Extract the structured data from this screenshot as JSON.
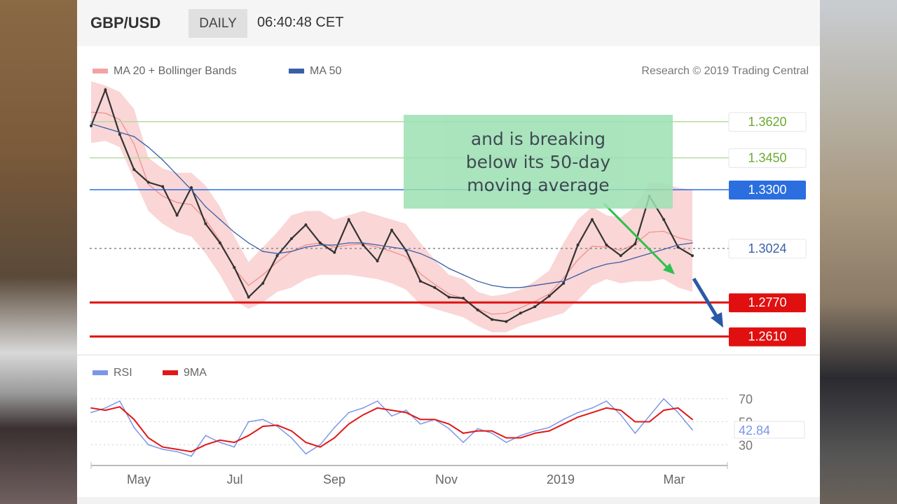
{
  "header": {
    "pair": "GBP/USD",
    "period": "DAILY",
    "time": "06:40:48 CET"
  },
  "legend": {
    "ma20": {
      "label": "MA 20 + Bollinger Bands",
      "color": "#f4a3a3"
    },
    "ma50": {
      "label": "MA 50",
      "color": "#3a5fa8"
    }
  },
  "credit": "Research © 2019 Trading Central",
  "callout": {
    "text": "and is breaking\nbelow its 50-day\nmoving average",
    "color": "#9be0b2"
  },
  "chart_data": [
    {
      "type": "line",
      "title": "",
      "x": [
        0,
        5,
        10,
        15,
        20,
        25,
        30,
        35,
        40,
        45,
        50,
        55,
        60,
        65,
        70,
        75,
        80,
        85,
        90,
        95,
        100,
        105,
        110,
        115,
        120,
        125,
        130,
        135,
        140,
        145,
        150,
        155,
        160,
        165,
        170,
        175,
        180,
        185,
        190,
        195,
        200,
        205,
        210
      ],
      "series": [
        {
          "name": "",
          "values": [
            1.36,
            1.377,
            1.356,
            1.3395,
            1.3335,
            1.3315,
            1.318,
            1.331,
            1.314,
            1.305,
            1.2935,
            1.2795,
            1.286,
            1.299,
            1.307,
            1.3135,
            1.305,
            1.3005,
            1.316,
            1.304,
            1.2965,
            1.311,
            1.3015,
            1.287,
            1.284,
            1.2795,
            1.279,
            1.2735,
            1.269,
            1.268,
            1.272,
            1.275,
            1.28,
            1.286,
            1.304,
            1.316,
            1.304,
            1.299,
            1.3045,
            1.327,
            1.316,
            1.303,
            1.299
          ],
          "color": "#333333"
        },
        {
          "name": "MA 50",
          "values": [
            1.361,
            1.359,
            1.357,
            1.355,
            1.35,
            1.344,
            1.337,
            1.33,
            1.322,
            1.316,
            1.31,
            1.305,
            1.301,
            1.3,
            1.301,
            1.303,
            1.304,
            1.304,
            1.305,
            1.305,
            1.304,
            1.303,
            1.302,
            1.3,
            1.297,
            1.293,
            1.29,
            1.287,
            1.285,
            1.284,
            1.284,
            1.285,
            1.286,
            1.287,
            1.29,
            1.293,
            1.295,
            1.296,
            1.298,
            1.3,
            1.302,
            1.304,
            1.305
          ],
          "color": "#3a5fa8"
        }
      ],
      "bands": {
        "upper": [
          1.381,
          1.379,
          1.376,
          1.368,
          1.345,
          1.34,
          1.338,
          1.338,
          1.332,
          1.322,
          1.308,
          1.296,
          1.303,
          1.31,
          1.318,
          1.32,
          1.32,
          1.316,
          1.318,
          1.32,
          1.318,
          1.316,
          1.314,
          1.305,
          1.297,
          1.29,
          1.288,
          1.282,
          1.28,
          1.281,
          1.283,
          1.287,
          1.292,
          1.305,
          1.316,
          1.322,
          1.318,
          1.317,
          1.322,
          1.333,
          1.333,
          1.331,
          1.33
        ],
        "lower": [
          1.352,
          1.353,
          1.35,
          1.335,
          1.32,
          1.314,
          1.31,
          1.308,
          1.3,
          1.29,
          1.278,
          1.274,
          1.277,
          1.282,
          1.284,
          1.288,
          1.29,
          1.29,
          1.29,
          1.289,
          1.288,
          1.286,
          1.283,
          1.276,
          1.274,
          1.272,
          1.27,
          1.266,
          1.263,
          1.263,
          1.266,
          1.268,
          1.27,
          1.272,
          1.278,
          1.285,
          1.288,
          1.286,
          1.287,
          1.287,
          1.288,
          1.284,
          1.282
        ],
        "color": "#f4a3a3"
      },
      "levels": [
        {
          "value": 1.362,
          "label": "1.3620",
          "color": "#b5dba0",
          "text_color": "#6aaa2e"
        },
        {
          "value": 1.345,
          "label": "1.3450",
          "color": "#b5dba0",
          "text_color": "#6aaa2e"
        },
        {
          "value": 1.33,
          "label": "1.3300",
          "color": "#2a6ee0",
          "text_color": "#ffffff"
        },
        {
          "value": 1.3024,
          "label": "1.3024",
          "color": "#888888",
          "text_color": "#3a5fa8"
        },
        {
          "value": 1.277,
          "label": "1.2770",
          "color": "#e01010",
          "text_color": "#ffffff"
        },
        {
          "value": 1.261,
          "label": "1.2610",
          "color": "#e01010",
          "text_color": "#ffffff"
        }
      ],
      "ylim": [
        1.253,
        1.383
      ],
      "xlim": [
        0,
        210
      ]
    },
    {
      "type": "line",
      "title": "",
      "legend": [
        {
          "label": "RSI",
          "color": "#7b96e8"
        },
        {
          "label": "9MA",
          "color": "#e01818"
        }
      ],
      "x": [
        0,
        5,
        10,
        15,
        20,
        25,
        30,
        35,
        40,
        45,
        50,
        55,
        60,
        65,
        70,
        75,
        80,
        85,
        90,
        95,
        100,
        105,
        110,
        115,
        120,
        125,
        130,
        135,
        140,
        145,
        150,
        155,
        160,
        165,
        170,
        175,
        180,
        185,
        190,
        195,
        200,
        205,
        210
      ],
      "series": [
        {
          "name": "RSI",
          "values": [
            58,
            62,
            68,
            45,
            30,
            26,
            24,
            20,
            38,
            32,
            28,
            50,
            52,
            46,
            36,
            22,
            30,
            45,
            58,
            62,
            68,
            55,
            60,
            48,
            52,
            44,
            32,
            44,
            40,
            32,
            38,
            42,
            45,
            52,
            58,
            62,
            68,
            56,
            40,
            55,
            70,
            58,
            43
          ],
          "color": "#7b96e8"
        },
        {
          "name": "9MA",
          "values": [
            62,
            60,
            63,
            52,
            36,
            28,
            26,
            24,
            30,
            34,
            32,
            38,
            46,
            47,
            42,
            32,
            28,
            36,
            48,
            56,
            62,
            60,
            58,
            52,
            52,
            48,
            40,
            42,
            42,
            36,
            36,
            40,
            42,
            48,
            54,
            58,
            62,
            60,
            50,
            50,
            60,
            62,
            52
          ],
          "color": "#e01818"
        }
      ],
      "rsi_value": "42.84",
      "y_ticks": [
        "70",
        "50",
        "30"
      ],
      "x_ticks": [
        "May",
        "Jul",
        "Sep",
        "Nov",
        "2019",
        "Mar"
      ],
      "ylim": [
        18,
        82
      ]
    }
  ]
}
